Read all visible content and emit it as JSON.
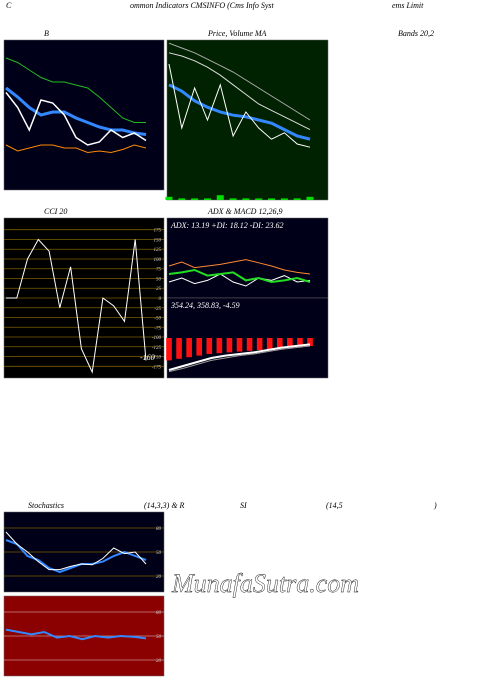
{
  "header": {
    "parts": [
      "C",
      "ommon  Indicators CMSINFO (Cms Info  Syst",
      "ems Limit"
    ]
  },
  "watermark": "MunafaSutra.com",
  "labels": {
    "row1": [
      "B",
      "Price,  Volume  MA",
      "Bands 20,2"
    ],
    "row2": [
      "CCI 20",
      "ADX  & MACD 12,26,9"
    ],
    "row3": [
      "Stochastics",
      "(14,3,3) & R",
      "SI",
      "(14,5",
      ")"
    ]
  },
  "chart_data": [
    {
      "type": "line",
      "ylim": [
        0,
        100
      ],
      "background": "#000018",
      "series": [
        {
          "color": "#22bb22",
          "values": [
            88,
            85,
            80,
            75,
            72,
            72,
            70,
            68,
            62,
            55,
            48,
            45,
            45
          ]
        },
        {
          "color": "#3388ff",
          "line_width": 3,
          "values": [
            68,
            62,
            55,
            50,
            52,
            52,
            48,
            45,
            42,
            40,
            40,
            38,
            37
          ]
        },
        {
          "color": "#ffffff",
          "line_width": 1.5,
          "values": [
            65,
            55,
            40,
            60,
            58,
            50,
            35,
            30,
            32,
            40,
            35,
            38,
            33
          ]
        },
        {
          "color": "#ff8800",
          "values": [
            30,
            26,
            28,
            30,
            30,
            28,
            28,
            25,
            26,
            25,
            27,
            30,
            28
          ]
        }
      ]
    },
    {
      "type": "line",
      "ylim": [
        0,
        100
      ],
      "background": "#002200",
      "series": [
        {
          "color": "#aaaaaa",
          "values": [
            98,
            95,
            92,
            88,
            84,
            80,
            75,
            70,
            65,
            60,
            55,
            50
          ]
        },
        {
          "color": "#dddddd",
          "values": [
            92,
            90,
            87,
            83,
            78,
            72,
            66,
            60,
            56,
            52,
            48,
            44
          ]
        },
        {
          "color": "#3388ff",
          "line_width": 3,
          "values": [
            72,
            68,
            62,
            58,
            55,
            53,
            52,
            50,
            48,
            44,
            40,
            38
          ]
        },
        {
          "color": "#ffffff",
          "values": [
            85,
            45,
            70,
            50,
            72,
            40,
            55,
            45,
            38,
            42,
            35,
            33
          ]
        },
        {
          "type": "bar",
          "color": "#00dd00",
          "values": [
            2,
            1,
            1,
            1,
            3,
            1,
            1,
            1,
            1,
            1,
            1,
            2
          ]
        }
      ]
    },
    {
      "type": "line",
      "ylim": [
        -205,
        205
      ],
      "background": "#000000",
      "grid": true,
      "grid_color": "#7a5c00",
      "yticks": [
        175,
        150,
        125,
        100,
        75,
        50,
        25,
        0,
        -25,
        -50,
        -75,
        -100,
        -125,
        -150,
        -175
      ],
      "annotation": "-160",
      "series": [
        {
          "color": "#ffffff",
          "values": [
            0,
            0,
            100,
            150,
            120,
            -25,
            80,
            -130,
            -190,
            0,
            -20,
            -60,
            150,
            -160
          ]
        }
      ]
    },
    {
      "type": "line",
      "ylim": [
        0,
        100
      ],
      "background": "#000018",
      "annotation": "ADX: 13.19 +DI: 18.12 -DI: 23.62",
      "series": [
        {
          "color": "#ffffff",
          "values": [
            20,
            25,
            18,
            22,
            30,
            20,
            15,
            25,
            22,
            28,
            20,
            22
          ]
        },
        {
          "color": "#22dd22",
          "line_width": 2,
          "values": [
            30,
            32,
            35,
            28,
            30,
            32,
            22,
            25,
            20,
            22,
            25,
            20
          ]
        },
        {
          "color": "#ff8833",
          "values": [
            40,
            45,
            38,
            40,
            42,
            45,
            48,
            44,
            40,
            35,
            32,
            30
          ]
        }
      ]
    },
    {
      "type": "line",
      "ylim": [
        -50,
        50
      ],
      "background": "#000018",
      "annotation": "354.24, 358.83, -4.59",
      "series": [
        {
          "type": "bar",
          "color": "#ff1111",
          "values": [
            -28,
            -26,
            -24,
            -22,
            -20,
            -19,
            -18,
            -17,
            -16,
            -15,
            -14,
            -13,
            -12,
            -11,
            -10
          ]
        },
        {
          "color": "#ffffff",
          "line_width": 2,
          "values": [
            -40,
            -35,
            -30,
            -25,
            -22,
            -20,
            -18,
            -15,
            -12,
            -10,
            -8
          ]
        },
        {
          "color": "#999999",
          "values": [
            -42,
            -38,
            -33,
            -28,
            -25,
            -22,
            -20,
            -17,
            -14,
            -12,
            -10
          ]
        }
      ]
    },
    {
      "type": "line",
      "ylim": [
        0,
        100
      ],
      "background": "#000018",
      "grid": true,
      "grid_color": "#7a5c00",
      "yticks": [
        80,
        50,
        20
      ],
      "series": [
        {
          "color": "#3388ff",
          "line_width": 2,
          "values": [
            65,
            60,
            45,
            40,
            30,
            25,
            30,
            35,
            35,
            38,
            45,
            50,
            45,
            40
          ]
        },
        {
          "color": "#ffffff",
          "values": [
            75,
            60,
            50,
            38,
            28,
            28,
            32,
            35,
            34,
            42,
            55,
            48,
            50,
            35
          ]
        }
      ]
    },
    {
      "type": "line",
      "ylim": [
        0,
        100
      ],
      "background": "#8b0000",
      "grid": true,
      "grid_color": "#cc8888",
      "yticks": [
        80,
        50,
        20
      ],
      "series": [
        {
          "color": "#3388ff",
          "line_width": 2,
          "values": [
            58,
            55,
            52,
            55,
            48,
            50,
            46,
            50,
            48,
            50,
            49,
            47
          ]
        }
      ]
    }
  ]
}
